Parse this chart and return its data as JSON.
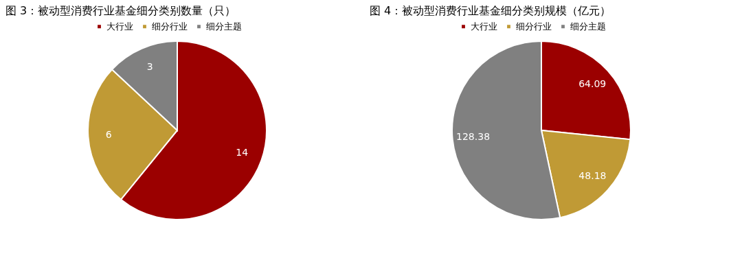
{
  "chart_data": [
    {
      "type": "pie",
      "title": "图 3：被动型消费行业基金细分类别数量（只）",
      "categories": [
        "大行业",
        "细分行业",
        "细分主题"
      ],
      "values": [
        14,
        6,
        3
      ],
      "colors": [
        "#9b0000",
        "#c09a35",
        "#808080"
      ],
      "data_labels": true,
      "legend": "top"
    },
    {
      "type": "pie",
      "title": "图 4：被动型消费行业基金细分类别规模（亿元）",
      "categories": [
        "大行业",
        "细分行业",
        "细分主题"
      ],
      "values": [
        64.09,
        48.18,
        128.38
      ],
      "colors": [
        "#9b0000",
        "#c09a35",
        "#808080"
      ],
      "data_labels": true,
      "legend": "top"
    }
  ]
}
